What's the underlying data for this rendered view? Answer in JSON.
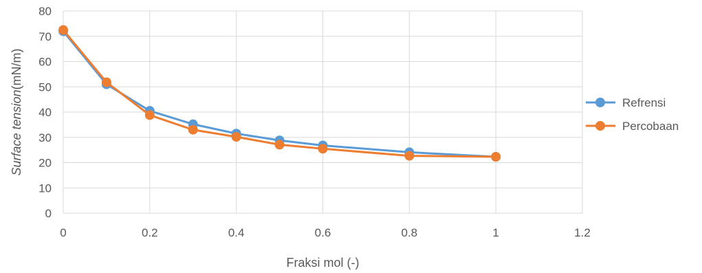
{
  "chart_data": {
    "type": "scatter",
    "title": "",
    "xlabel": "Fraksi mol (-)",
    "ylabel_italic": "Surface tension",
    "ylabel_unit": "(mN/m)",
    "xlim": [
      0,
      1.2
    ],
    "ylim": [
      0,
      80
    ],
    "x_ticks": [
      0,
      0.2,
      0.4,
      0.6,
      0.8,
      1,
      1.2
    ],
    "x_tick_labels": [
      "0",
      "0.2",
      "0.4",
      "0.6",
      "0.8",
      "1",
      "1.2"
    ],
    "y_ticks": [
      0,
      10,
      20,
      30,
      40,
      50,
      60,
      70,
      80
    ],
    "y_tick_labels": [
      "0",
      "10",
      "20",
      "30",
      "40",
      "50",
      "60",
      "70",
      "80"
    ],
    "grid": true,
    "legend_position": "right",
    "series": [
      {
        "name": "Refrensi",
        "color": "#5B9BD5",
        "x": [
          0,
          0.1,
          0.2,
          0.3,
          0.4,
          0.5,
          0.6,
          0.8,
          1
        ],
        "y": [
          72,
          51,
          40.5,
          35.2,
          31.5,
          28.8,
          26.8,
          24.1,
          22.3
        ]
      },
      {
        "name": "Percobaan",
        "color": "#ED7D31",
        "x": [
          0,
          0.1,
          0.2,
          0.3,
          0.4,
          0.5,
          0.6,
          0.8,
          1
        ],
        "y": [
          72.5,
          51.8,
          38.8,
          33,
          30.2,
          27.1,
          25.5,
          22.7,
          22.3
        ]
      }
    ]
  }
}
